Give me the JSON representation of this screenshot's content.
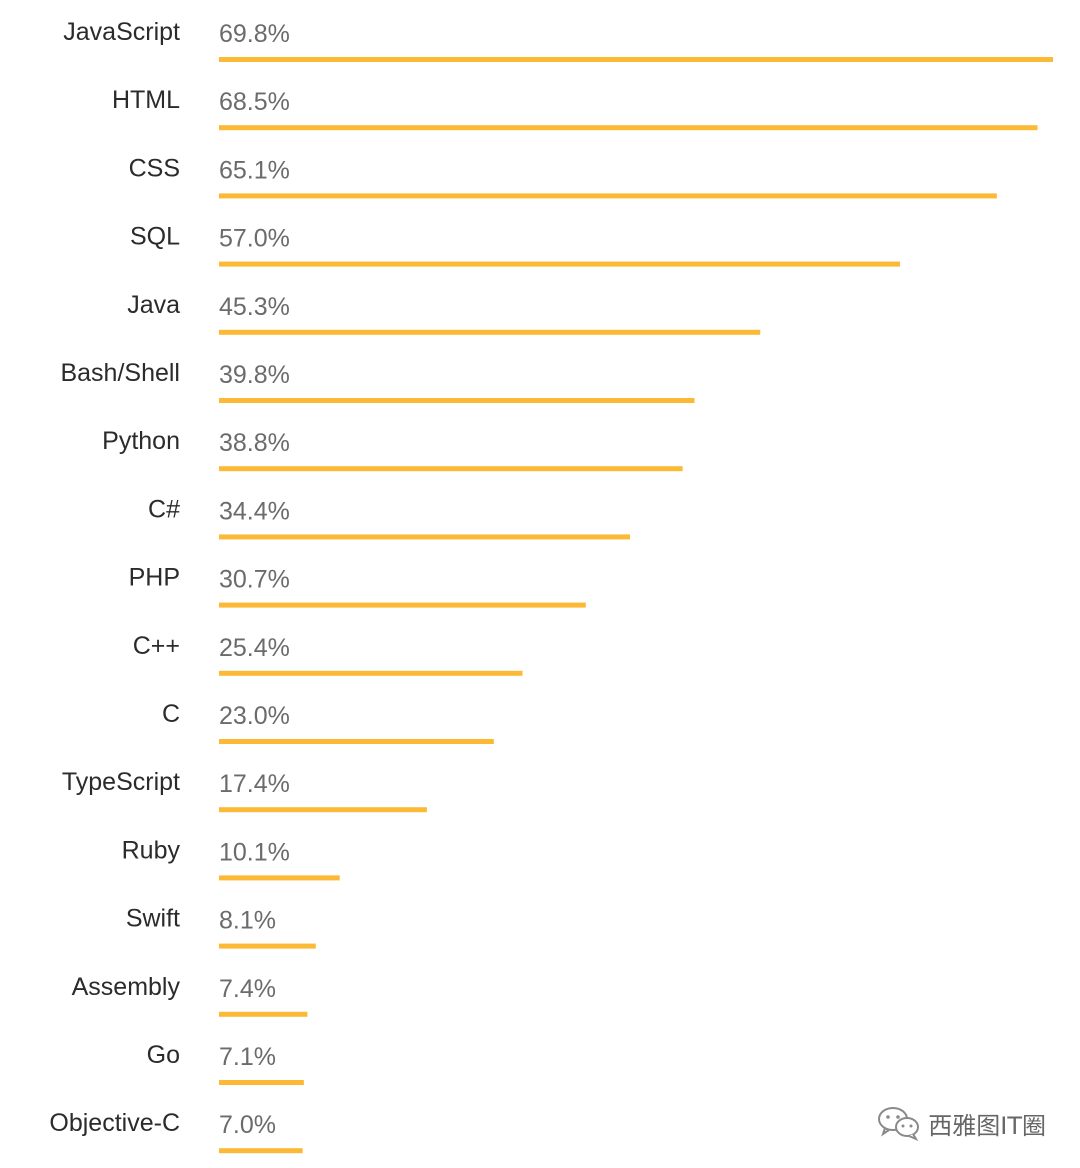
{
  "chart_data": {
    "type": "bar",
    "orientation": "horizontal",
    "categories": [
      "JavaScript",
      "HTML",
      "CSS",
      "SQL",
      "Java",
      "Bash/Shell",
      "Python",
      "C#",
      "PHP",
      "C++",
      "C",
      "TypeScript",
      "Ruby",
      "Swift",
      "Assembly",
      "Go",
      "Objective-C"
    ],
    "values": [
      69.8,
      68.5,
      65.1,
      57.0,
      45.3,
      39.8,
      38.8,
      34.4,
      30.7,
      25.4,
      23.0,
      17.4,
      10.1,
      8.1,
      7.4,
      7.1,
      7.0
    ],
    "value_labels": [
      "69.8%",
      "68.5%",
      "65.1%",
      "57.0%",
      "45.3%",
      "39.8%",
      "38.8%",
      "34.4%",
      "30.7%",
      "25.4%",
      "23.0%",
      "17.4%",
      "10.1%",
      "8.1%",
      "7.4%",
      "7.1%",
      "7.0%"
    ],
    "bar_color": "#FBB936",
    "grid": false,
    "legend": "none"
  },
  "watermark": {
    "text": "西雅图IT圈",
    "icon": "wechat-icon"
  }
}
